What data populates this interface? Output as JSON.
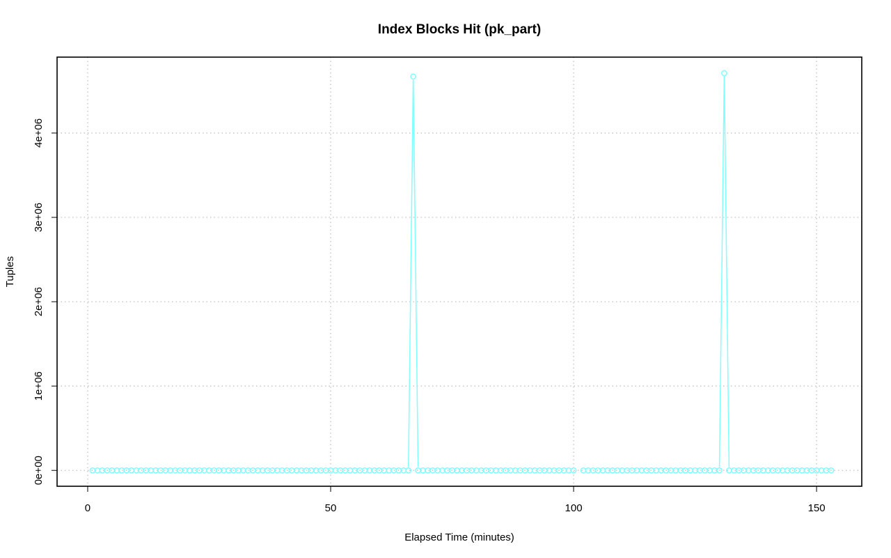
{
  "chart_data": {
    "type": "line",
    "title": "Index Blocks Hit (pk_part)",
    "xlabel": "Elapsed Time (minutes)",
    "ylabel": "Tuples",
    "xlim": [
      -6.3,
      159.3
    ],
    "ylim": [
      -188000,
      4900000
    ],
    "x_ticks": [
      0,
      50,
      100,
      150
    ],
    "x_tick_labels": [
      "0",
      "50",
      "100",
      "150"
    ],
    "y_ticks": [
      0,
      1000000,
      2000000,
      3000000,
      4000000
    ],
    "y_tick_labels": [
      "0e+00",
      "1e+06",
      "2e+06",
      "3e+06",
      "4e+06"
    ],
    "grid": true,
    "line_color": "#7FFFFF",
    "series": [
      {
        "x_start": 1,
        "x_end": 153,
        "baseline": 0,
        "spikes": [
          {
            "x": 67,
            "y": 4670000
          },
          {
            "x": 131,
            "y": 4710000
          }
        ],
        "missing_x": [
          101
        ]
      }
    ]
  }
}
